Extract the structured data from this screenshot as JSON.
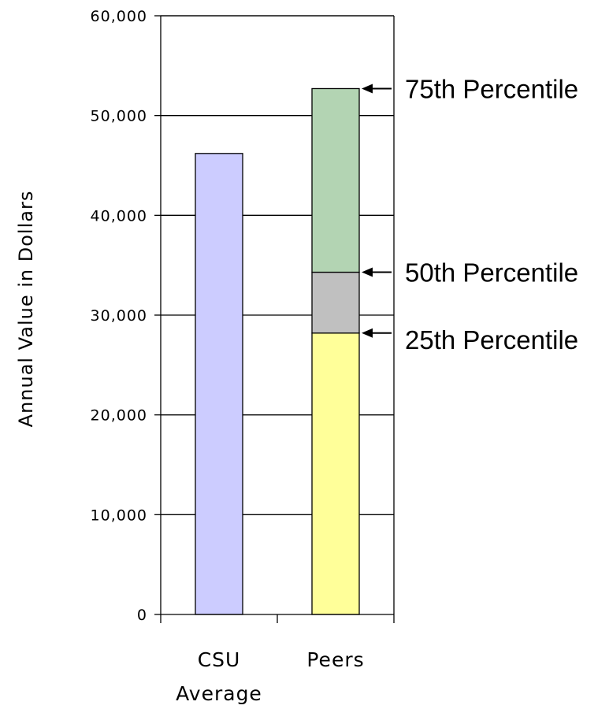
{
  "chart_data": {
    "type": "bar",
    "ylabel": "Annual Value in Dollars",
    "xlabel": "",
    "ylim": [
      0,
      60000
    ],
    "yticks": [
      0,
      10000,
      20000,
      30000,
      40000,
      50000,
      60000
    ],
    "ytick_labels": [
      "0",
      "10,000",
      "20,000",
      "30,000",
      "40,000",
      "50,000",
      "60,000"
    ],
    "grid": true,
    "categories": [
      {
        "label_lines": [
          "CSU",
          "Average"
        ]
      },
      {
        "label_lines": [
          "Peers"
        ]
      }
    ],
    "bars": [
      {
        "category": "CSU Average",
        "value": 46200,
        "color": "#ccccff"
      }
    ],
    "stacked": [
      {
        "category": "Peers",
        "segments": [
          {
            "from": 0,
            "to": 28200,
            "color": "#ffff99"
          },
          {
            "from": 28200,
            "to": 34300,
            "color": "#c0c0c0"
          },
          {
            "from": 34300,
            "to": 52700,
            "color": "#b3d4b3"
          }
        ]
      }
    ],
    "annotations": [
      {
        "text": "75th Percentile",
        "value": 52700
      },
      {
        "text": "50th Percentile",
        "value": 34300
      },
      {
        "text": "25th Percentile",
        "value": 28200
      }
    ]
  }
}
